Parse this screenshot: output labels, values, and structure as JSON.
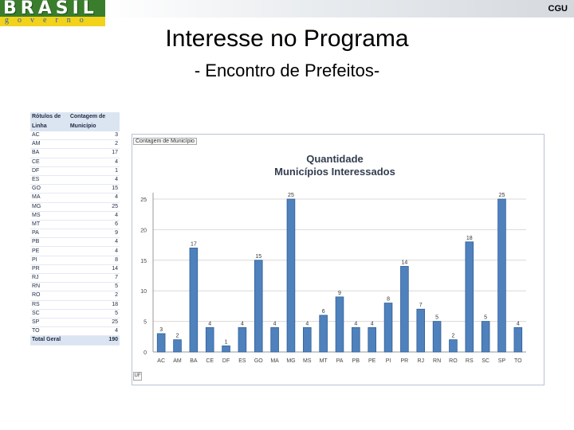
{
  "header": {
    "logo_word": "BRASIL",
    "logo_sub": "governo",
    "org": "CGU"
  },
  "title": "Interesse no Programa",
  "subtitle": "- Encontro de Prefeitos-",
  "pivot": {
    "col1": "Rótulos de Linha",
    "col2": "Contagem de Município",
    "rows": [
      [
        "AC",
        "3"
      ],
      [
        "AM",
        "2"
      ],
      [
        "BA",
        "17"
      ],
      [
        "CE",
        "4"
      ],
      [
        "DF",
        "1"
      ],
      [
        "ES",
        "4"
      ],
      [
        "GO",
        "15"
      ],
      [
        "MA",
        "4"
      ],
      [
        "MG",
        "25"
      ],
      [
        "MS",
        "4"
      ],
      [
        "MT",
        "6"
      ],
      [
        "PA",
        "9"
      ],
      [
        "PB",
        "4"
      ],
      [
        "PE",
        "4"
      ],
      [
        "PI",
        "8"
      ],
      [
        "PR",
        "14"
      ],
      [
        "RJ",
        "7"
      ],
      [
        "RN",
        "5"
      ],
      [
        "RO",
        "2"
      ],
      [
        "RS",
        "18"
      ],
      [
        "SC",
        "5"
      ],
      [
        "SP",
        "25"
      ],
      [
        "TO",
        "4"
      ]
    ],
    "total_label": "Total Geral",
    "total_value": "190"
  },
  "chart_panel_tag": "Contagem de Município",
  "chart_panel_foot": "UF",
  "colors": {
    "bar": "#4f81bd",
    "bar_edge": "#2f5f98",
    "grid": "#d9d9d9"
  },
  "chart_data": {
    "type": "bar",
    "title": "Quantidade Municípios Interessados",
    "title_lines": [
      "Quantidade",
      "Municípios Interessados"
    ],
    "categories": [
      "AC",
      "AM",
      "BA",
      "CE",
      "DF",
      "ES",
      "GO",
      "MA",
      "MG",
      "MS",
      "MT",
      "PA",
      "PB",
      "PE",
      "PI",
      "PR",
      "RJ",
      "RN",
      "RO",
      "RS",
      "SC",
      "SP",
      "TO"
    ],
    "values": [
      3,
      2,
      17,
      4,
      1,
      4,
      15,
      4,
      25,
      4,
      6,
      9,
      4,
      4,
      8,
      14,
      7,
      5,
      2,
      18,
      5,
      25,
      4
    ],
    "ylim": [
      0,
      25
    ],
    "yticks": [
      0,
      5,
      10,
      15,
      20,
      25
    ],
    "grid": true,
    "legend": "none"
  }
}
